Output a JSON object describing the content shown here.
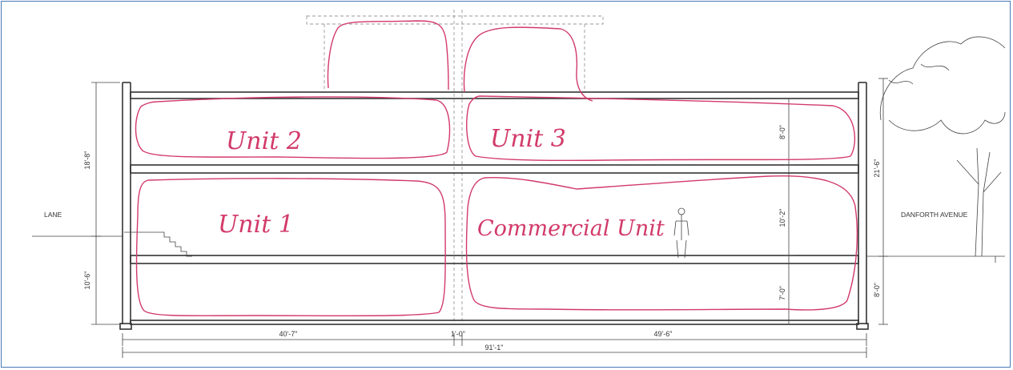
{
  "labels": {
    "lane": "LANE",
    "street": "DANFORTH AVENUE"
  },
  "dimensions": {
    "left_upper": "18'-8\"",
    "left_lower": "10'-6\"",
    "right_total": "21'-6\"",
    "right_basement": "8'-0\"",
    "inner_top": "8'-0\"",
    "inner_mid": "10'-2\"",
    "inner_bottom": "7'-0\"",
    "bottom_left": "40'-7\"",
    "bottom_gap": "1'-0\"",
    "bottom_right": "49'-6\"",
    "bottom_total": "91'-1\""
  },
  "annotations": {
    "unit_2": "Unit 2",
    "unit_3": "Unit 3",
    "unit_1": "Unit 1",
    "commercial": "Commercial Unit"
  },
  "colors": {
    "markup": "#d23a6a",
    "linework": "#333333",
    "frame": "#4a7ab8"
  }
}
